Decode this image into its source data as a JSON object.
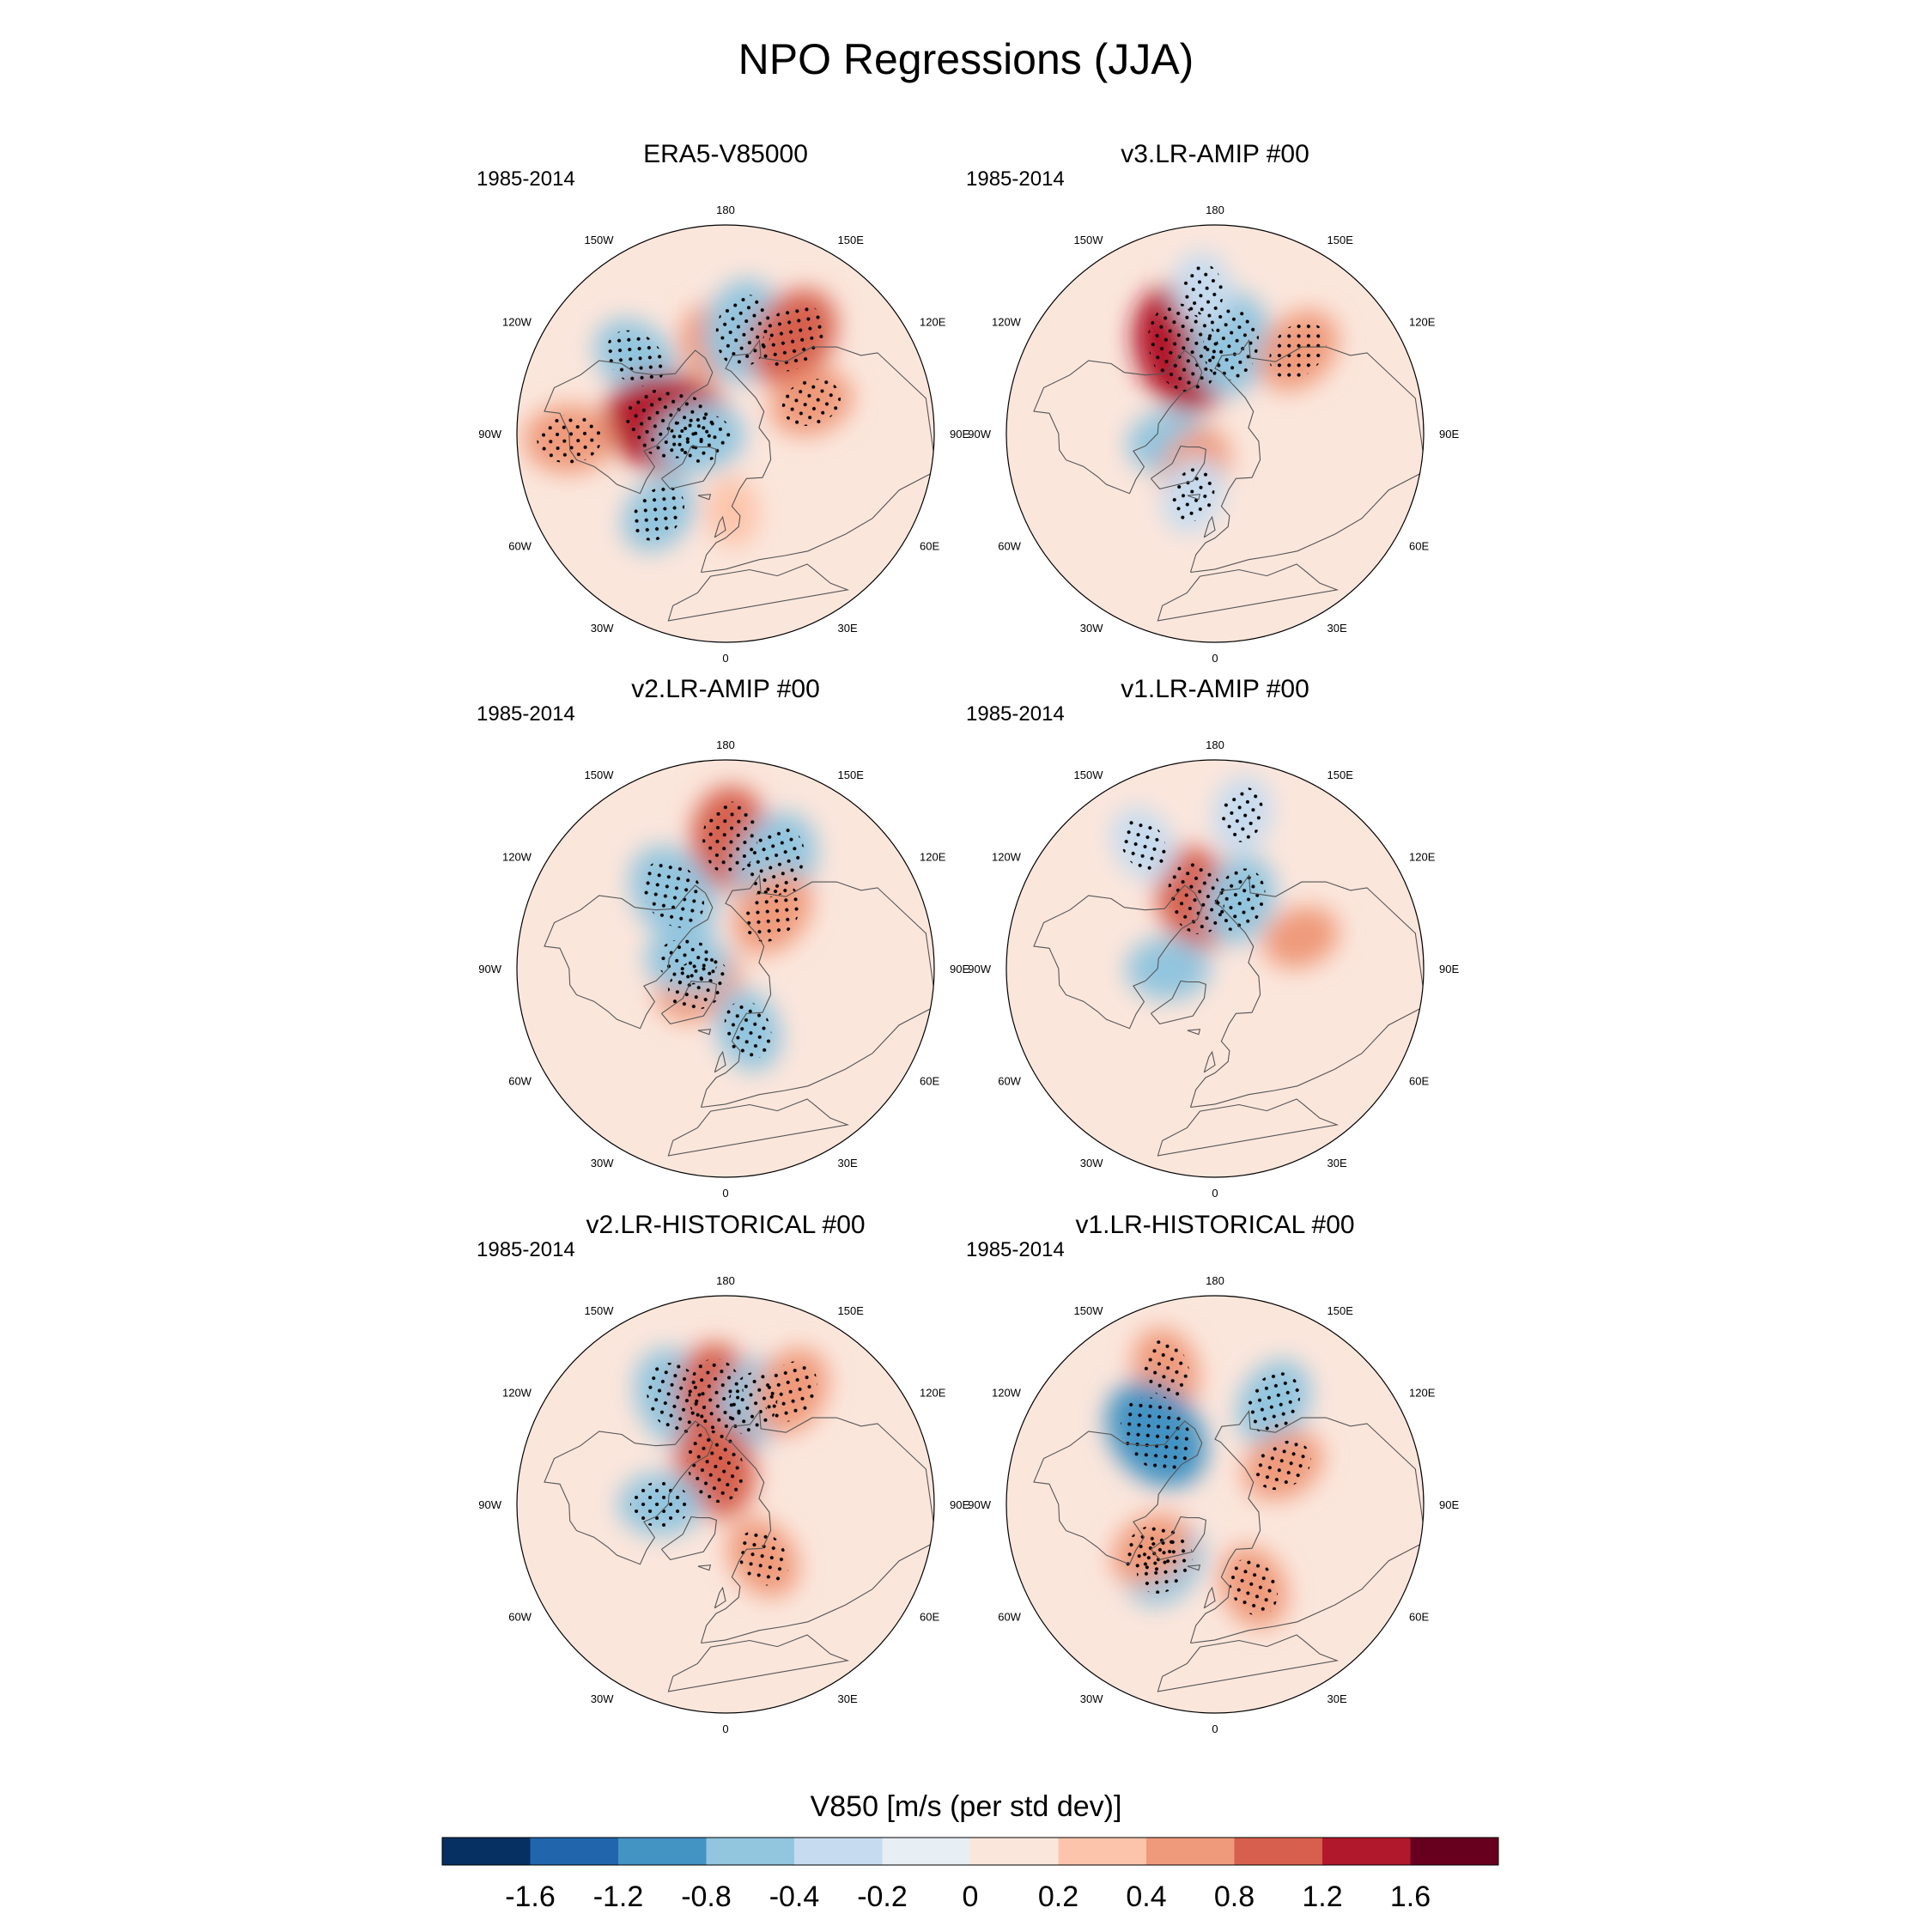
{
  "title": "NPO Regressions (JJA)",
  "colorbar": {
    "title": "V850 [m/s (per std dev)]",
    "levels": [
      "-1.6",
      "-1.2",
      "-0.8",
      "-0.4",
      "-0.2",
      "0",
      "0.2",
      "0.4",
      "0.8",
      "1.2",
      "1.6"
    ],
    "colors": [
      "#053061",
      "#2166ac",
      "#4393c3",
      "#92c5de",
      "#c6dbef",
      "#e7eef4",
      "#fbe6dc",
      "#fcc5ab",
      "#ef9a7a",
      "#d6604d",
      "#b2182b",
      "#67001f"
    ]
  },
  "lon_labels": [
    "180",
    "150E",
    "120E",
    "90E",
    "60E",
    "30E",
    "0",
    "30W",
    "60W",
    "90W",
    "120W",
    "150W"
  ],
  "chart_data": [
    {
      "type": "heatmap",
      "projection": "north-polar-stereographic",
      "title": "ERA5-V85000",
      "period": "1985-2014",
      "variable": "V850",
      "units": "m/s (per std dev)",
      "features": [
        {
          "lon": -130,
          "lat": 45,
          "value": -0.6,
          "stippled": true
        },
        {
          "lon": -170,
          "lat": 55,
          "value": 0.4,
          "stippled": false
        },
        {
          "lon": 170,
          "lat": 50,
          "value": -0.8,
          "stippled": true
        },
        {
          "lon": 145,
          "lat": 45,
          "value": 0.8,
          "stippled": true
        },
        {
          "lon": 110,
          "lat": 55,
          "value": 0.5,
          "stippled": true
        },
        {
          "lon": -100,
          "lat": 68,
          "value": 1.2,
          "stippled": true
        },
        {
          "lon": -80,
          "lat": 80,
          "value": -0.6,
          "stippled": true
        },
        {
          "lon": -88,
          "lat": 30,
          "value": 0.6,
          "stippled": true
        },
        {
          "lon": -40,
          "lat": 50,
          "value": -0.5,
          "stippled": true
        },
        {
          "lon": 5,
          "lat": 60,
          "value": 0.3,
          "stippled": false
        }
      ]
    },
    {
      "type": "heatmap",
      "projection": "north-polar-stereographic",
      "title": "v3.LR-AMIP  #00",
      "period": "1985-2014",
      "variable": "V850",
      "units": "m/s (per std dev)",
      "features": [
        {
          "lon": -160,
          "lat": 55,
          "value": 1.2,
          "stippled": true
        },
        {
          "lon": 170,
          "lat": 55,
          "value": -0.8,
          "stippled": true
        },
        {
          "lon": 135,
          "lat": 45,
          "value": 0.6,
          "stippled": true
        },
        {
          "lon": -175,
          "lat": 35,
          "value": -0.4,
          "stippled": true
        },
        {
          "lon": -80,
          "lat": 72,
          "value": -0.5,
          "stippled": false
        },
        {
          "lon": -30,
          "lat": 75,
          "value": 0.5,
          "stippled": false
        },
        {
          "lon": -20,
          "lat": 65,
          "value": -0.4,
          "stippled": true
        }
      ]
    },
    {
      "type": "heatmap",
      "projection": "north-polar-stereographic",
      "title": "v2.LR-AMIP  #00",
      "period": "1985-2014",
      "variable": "V850",
      "units": "m/s (per std dev)",
      "features": [
        {
          "lon": 178,
          "lat": 40,
          "value": 0.8,
          "stippled": true
        },
        {
          "lon": 155,
          "lat": 45,
          "value": -0.8,
          "stippled": true
        },
        {
          "lon": -145,
          "lat": 55,
          "value": -0.8,
          "stippled": true
        },
        {
          "lon": 140,
          "lat": 62,
          "value": 0.6,
          "stippled": true
        },
        {
          "lon": -60,
          "lat": 78,
          "value": 0.6,
          "stippled": true
        },
        {
          "lon": -100,
          "lat": 75,
          "value": -0.5,
          "stippled": true
        },
        {
          "lon": 20,
          "lat": 65,
          "value": -0.5,
          "stippled": true
        }
      ]
    },
    {
      "type": "heatmap",
      "projection": "north-polar-stereographic",
      "title": "v1.LR-AMIP  #00",
      "period": "1985-2014",
      "variable": "V850",
      "units": "m/s (per std dev)",
      "features": [
        {
          "lon": -165,
          "lat": 62,
          "value": 0.8,
          "stippled": true
        },
        {
          "lon": 160,
          "lat": 62,
          "value": -0.6,
          "stippled": true
        },
        {
          "lon": -150,
          "lat": 35,
          "value": -0.4,
          "stippled": true
        },
        {
          "lon": 170,
          "lat": 30,
          "value": -0.4,
          "stippled": true
        },
        {
          "lon": -90,
          "lat": 72,
          "value": -0.5,
          "stippled": false
        },
        {
          "lon": 110,
          "lat": 55,
          "value": 0.4,
          "stippled": false
        }
      ]
    },
    {
      "type": "heatmap",
      "projection": "north-polar-stereographic",
      "title": "v2.LR-HISTORICAL  #00",
      "period": "1985-2014",
      "variable": "V850",
      "units": "m/s (per std dev)",
      "features": [
        {
          "lon": -155,
          "lat": 45,
          "value": -0.8,
          "stippled": true
        },
        {
          "lon": -175,
          "lat": 48,
          "value": 0.8,
          "stippled": true
        },
        {
          "lon": 165,
          "lat": 50,
          "value": -0.6,
          "stippled": true
        },
        {
          "lon": 150,
          "lat": 40,
          "value": 0.6,
          "stippled": true
        },
        {
          "lon": -165,
          "lat": 75,
          "value": 0.8,
          "stippled": true
        },
        {
          "lon": -90,
          "lat": 65,
          "value": -0.5,
          "stippled": true
        },
        {
          "lon": 35,
          "lat": 65,
          "value": 0.5,
          "stippled": true
        }
      ]
    },
    {
      "type": "heatmap",
      "projection": "north-polar-stereographic",
      "title": "v1.LR-HISTORICAL  #00",
      "period": "1985-2014",
      "variable": "V850",
      "units": "m/s (per std dev)",
      "features": [
        {
          "lon": -160,
          "lat": 35,
          "value": 0.5,
          "stippled": true
        },
        {
          "lon": -140,
          "lat": 55,
          "value": -1.0,
          "stippled": true
        },
        {
          "lon": 150,
          "lat": 45,
          "value": -0.6,
          "stippled": true
        },
        {
          "lon": 120,
          "lat": 60,
          "value": 0.5,
          "stippled": true
        },
        {
          "lon": -40,
          "lat": 60,
          "value": -0.6,
          "stippled": true
        },
        {
          "lon": -55,
          "lat": 60,
          "value": 0.5,
          "stippled": true
        },
        {
          "lon": 25,
          "lat": 55,
          "value": 0.5,
          "stippled": true
        }
      ]
    }
  ]
}
